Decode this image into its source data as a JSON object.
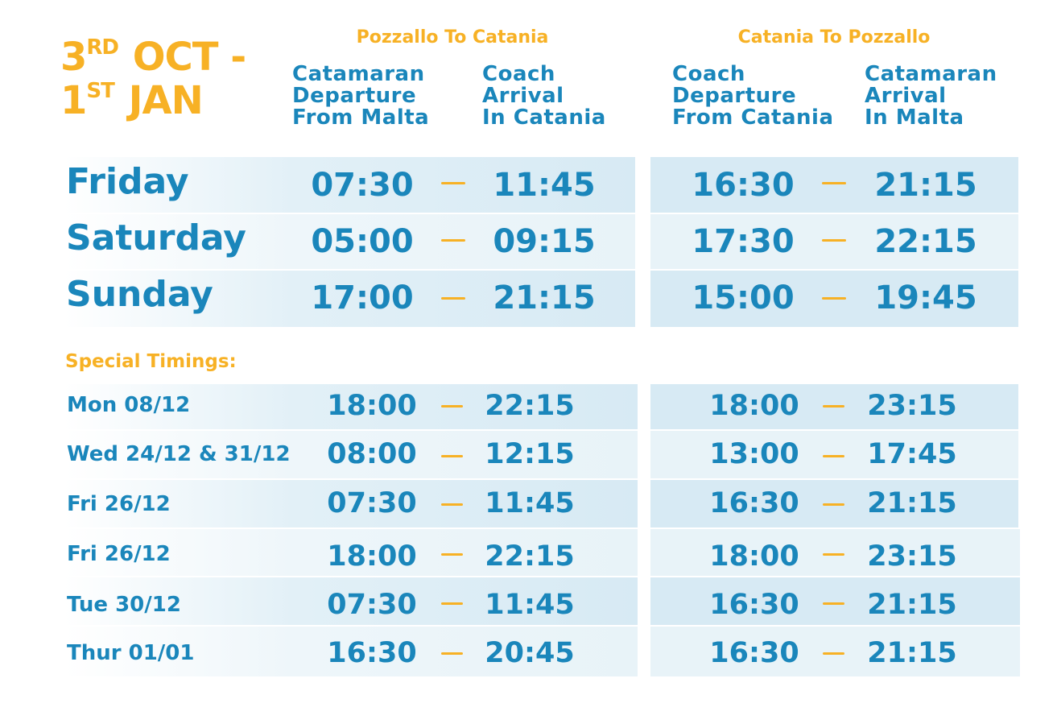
{
  "header": {
    "title_line1_num": "3",
    "title_line1_sup": "RD",
    "title_line1_rest": " OCT -",
    "title_line2_num": "1",
    "title_line2_sup": "ST",
    "title_line2_rest": " JAN",
    "route_outbound": "Pozzallo To Catania",
    "route_return": "Catania To Pozzallo",
    "col1": "Catamaran\nDeparture\nFrom Malta",
    "col2": "Coach\nArrival\nIn Catania",
    "col3": "Coach\nDeparture\nFrom Catania",
    "col4": "Catamaran\nArrival\nIn Malta"
  },
  "regular": [
    {
      "day": "Friday",
      "t1": "07:30",
      "t2": "11:45",
      "t3": "16:30",
      "t4": "21:15"
    },
    {
      "day": "Saturday",
      "t1": "05:00",
      "t2": "09:15",
      "t3": "17:30",
      "t4": "22:15"
    },
    {
      "day": "Sunday",
      "t1": "17:00",
      "t2": "21:15",
      "t3": "15:00",
      "t4": "19:45"
    }
  ],
  "special_label": "Special Timings:",
  "special": [
    {
      "day": "Mon 08/12",
      "t1": "18:00",
      "t2": "22:15",
      "t3": "18:00",
      "t4": "23:15"
    },
    {
      "day": "Wed 24/12 & 31/12",
      "t1": "08:00",
      "t2": "12:15",
      "t3": "13:00",
      "t4": "17:45"
    },
    {
      "day": "Fri 26/12",
      "t1": "07:30",
      "t2": "11:45",
      "t3": "16:30",
      "t4": "21:15"
    },
    {
      "day": "Fri 26/12",
      "t1": "18:00",
      "t2": "22:15",
      "t3": "18:00",
      "t4": "23:15"
    },
    {
      "day": "Tue 30/12",
      "t1": "07:30",
      "t2": "11:45",
      "t3": "16:30",
      "t4": "21:15"
    },
    {
      "day": "Thur 01/01",
      "t1": "16:30",
      "t2": "20:45",
      "t3": "16:30",
      "t4": "21:15"
    }
  ],
  "colors": {
    "accent": "#f7b125",
    "primary": "#1a86bb",
    "band": "#d7eaf4",
    "band_light": "#e8f3f8"
  }
}
